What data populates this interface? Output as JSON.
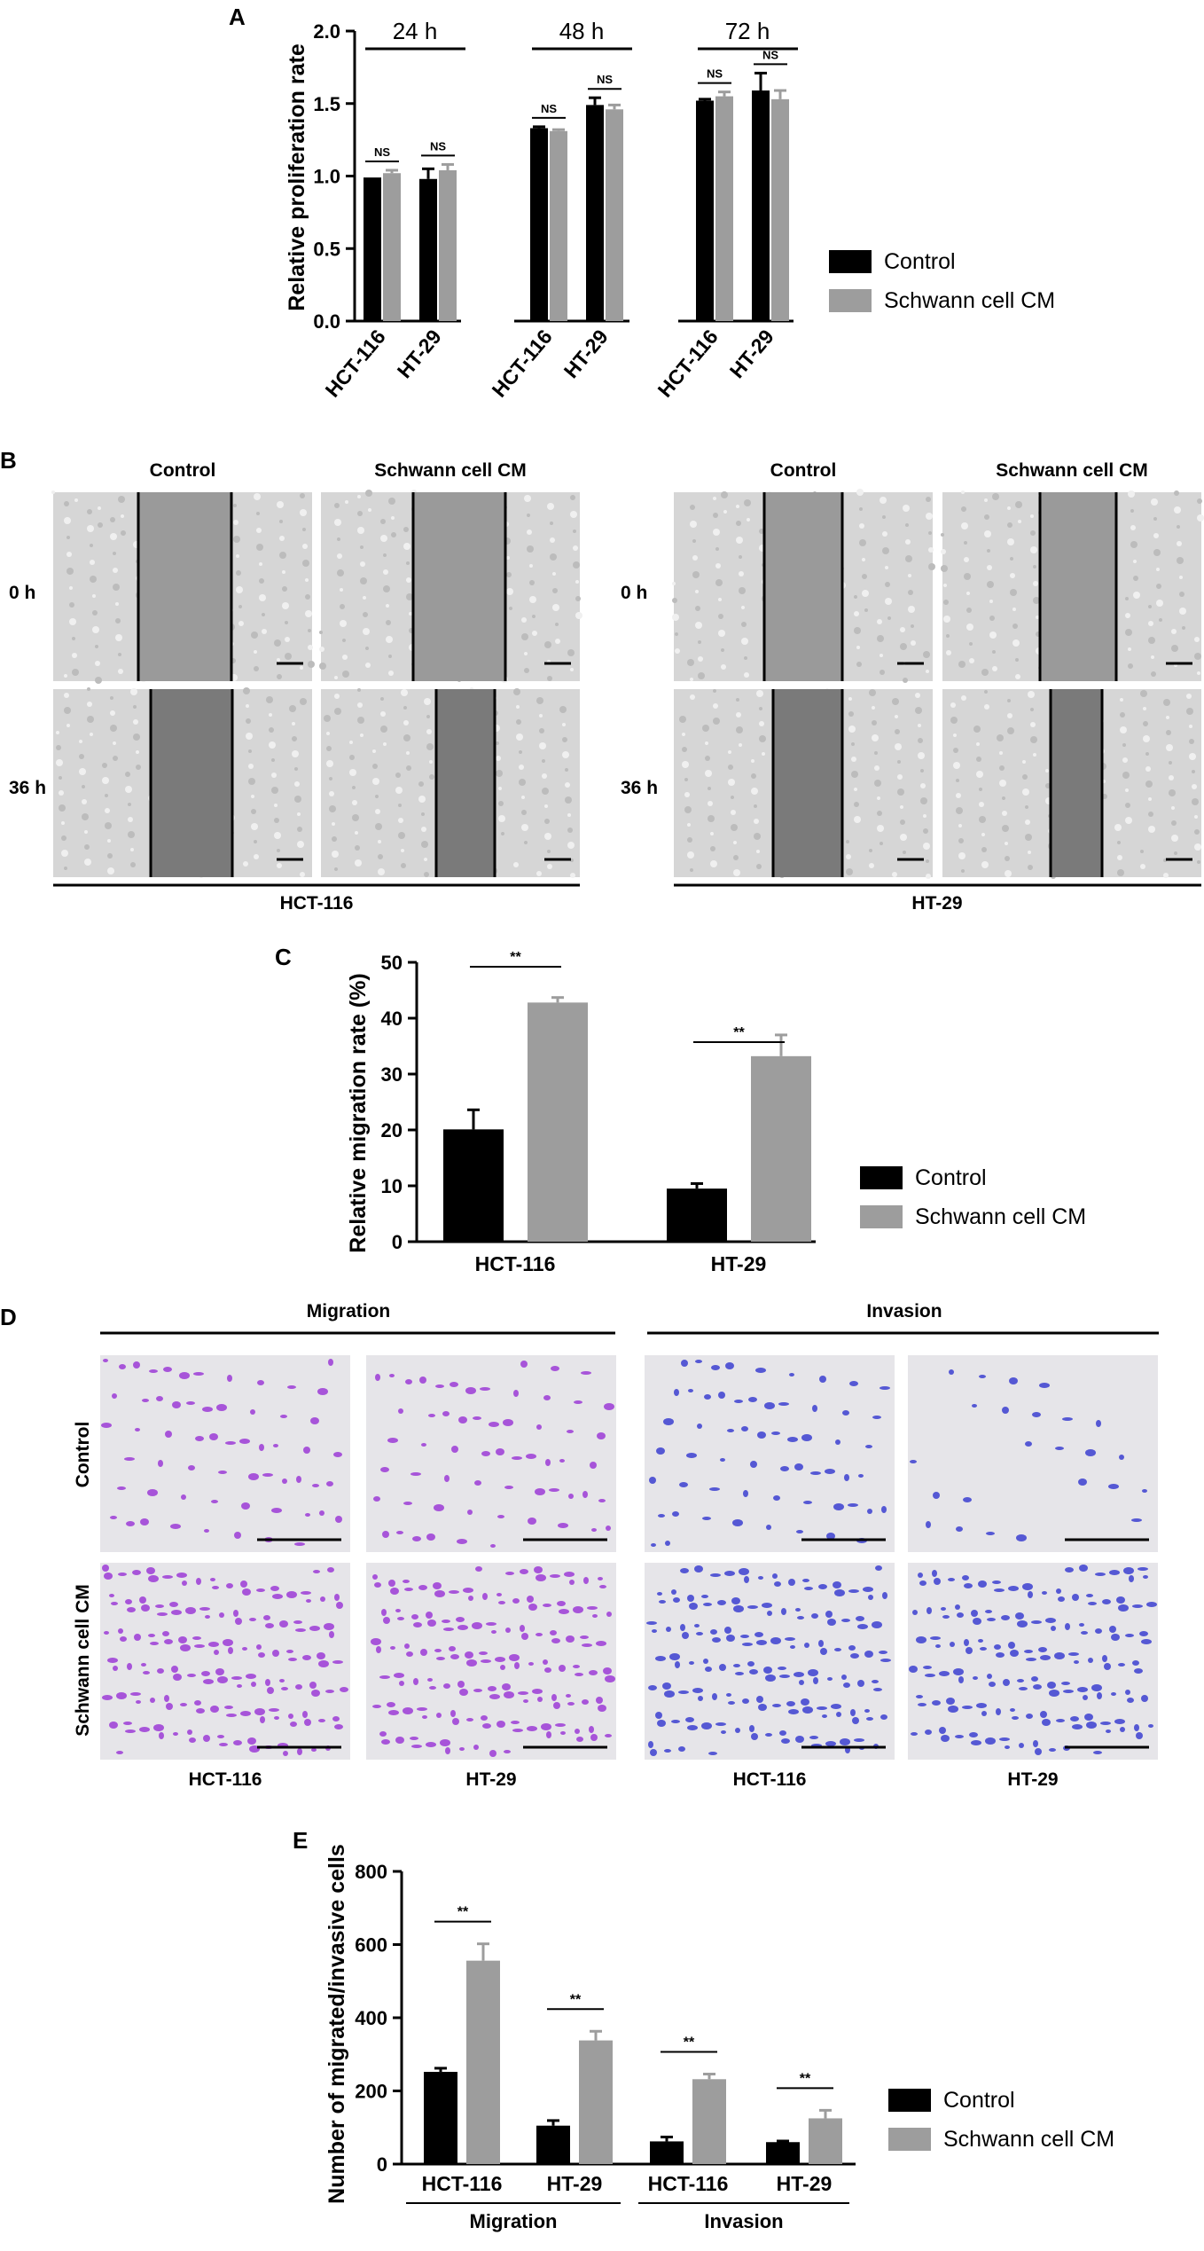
{
  "colors": {
    "control": "#000000",
    "schwann": "#9d9d9d",
    "migration_stain": "#9b3bd6",
    "invasion_stain": "#3b3fd0"
  },
  "panel_a": {
    "label": "A",
    "chart_data": {
      "type": "bar",
      "ylabel": "Relative proliferation rate",
      "ylim": [
        0,
        2.0
      ],
      "yticks": [
        "0.0",
        "0.5",
        "1.0",
        "1.5",
        "2.0"
      ],
      "groups": [
        "24 h",
        "48 h",
        "72 h"
      ],
      "categories": [
        "HCT-116",
        "HT-29"
      ],
      "series": [
        {
          "name": "Control",
          "values": [
            [
              0.99,
              0.98
            ],
            [
              1.33,
              1.49
            ],
            [
              1.52,
              1.59
            ]
          ],
          "errors": [
            [
              0.0,
              0.07
            ],
            [
              0.01,
              0.05
            ],
            [
              0.01,
              0.12
            ]
          ]
        },
        {
          "name": "Schwann cell CM",
          "values": [
            [
              1.02,
              1.04
            ],
            [
              1.31,
              1.46
            ],
            [
              1.55,
              1.53
            ]
          ],
          "errors": [
            [
              0.02,
              0.04
            ],
            [
              0.01,
              0.03
            ],
            [
              0.03,
              0.06
            ]
          ]
        }
      ],
      "annotations": [
        "NS",
        "NS",
        "NS",
        "NS",
        "NS",
        "NS"
      ],
      "legend": [
        "Control",
        "Schwann cell CM"
      ],
      "legend_position": "right"
    }
  },
  "panel_b": {
    "label": "B",
    "col_control": "Control",
    "col_cm": "Schwann cell CM",
    "row_0h": "0 h",
    "row_36h": "36 h",
    "cell_hct": "HCT-116",
    "cell_ht": "HT-29"
  },
  "panel_c": {
    "label": "C",
    "chart_data": {
      "type": "bar",
      "ylabel": "Relative migration rate (%)",
      "ylim": [
        0,
        50
      ],
      "yticks": [
        "0",
        "10",
        "20",
        "30",
        "40",
        "50"
      ],
      "categories": [
        "HCT-116",
        "HT-29"
      ],
      "series": [
        {
          "name": "Control",
          "values": [
            20.1,
            9.5
          ],
          "errors": [
            3.5,
            0.9
          ]
        },
        {
          "name": "Schwann cell CM",
          "values": [
            42.8,
            33.2
          ],
          "errors": [
            0.9,
            3.8
          ]
        }
      ],
      "annotations": [
        "**",
        "**"
      ],
      "legend": [
        "Control",
        "Schwann cell CM"
      ],
      "legend_position": "right"
    }
  },
  "panel_d": {
    "label": "D",
    "header_migration": "Migration",
    "header_invasion": "Invasion",
    "row_control": "Control",
    "row_cm": "Schwann cell CM",
    "cols": [
      "HCT-116",
      "HT-29",
      "HCT-116",
      "HT-29"
    ]
  },
  "panel_e": {
    "label": "E",
    "chart_data": {
      "type": "bar",
      "ylabel": "Number of migrated/invasive cells",
      "ylim": [
        0,
        800
      ],
      "yticks": [
        "0",
        "200",
        "400",
        "600",
        "800"
      ],
      "categories": [
        "HCT-116",
        "HT-29",
        "HCT-116",
        "HT-29"
      ],
      "groups": [
        "Migration",
        "Invasion"
      ],
      "series": [
        {
          "name": "Control",
          "values": [
            252,
            105,
            62,
            60
          ],
          "errors": [
            10,
            14,
            12,
            3
          ]
        },
        {
          "name": "Schwann cell CM",
          "values": [
            556,
            338,
            232,
            125
          ],
          "errors": [
            46,
            25,
            14,
            22
          ]
        }
      ],
      "annotations": [
        "**",
        "**",
        "**",
        "**"
      ],
      "legend": [
        "Control",
        "Schwann cell CM"
      ],
      "legend_position": "right"
    }
  }
}
